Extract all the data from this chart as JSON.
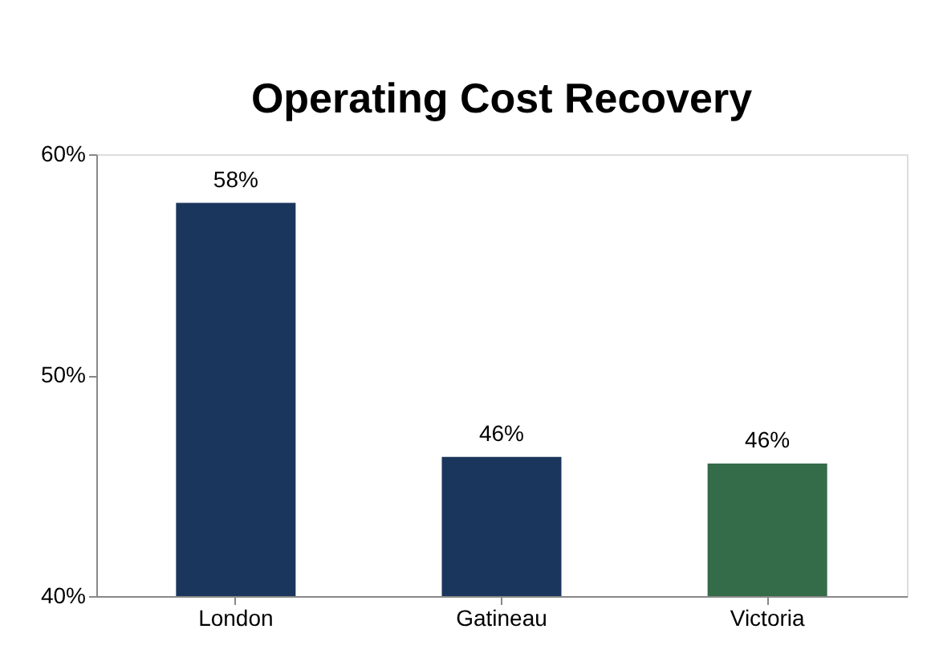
{
  "chart_data": {
    "type": "bar",
    "title": "Operating Cost Recovery",
    "categories": [
      "London",
      "Gatineau",
      "Victoria"
    ],
    "values": [
      57.8,
      46.3,
      46.0
    ],
    "colors": [
      "#1b365d",
      "#1b365d",
      "#346b49"
    ],
    "value_labels": [
      "58%",
      "46%",
      "46%"
    ],
    "ylim": [
      40,
      60
    ],
    "yticks": [
      {
        "value": 40,
        "label": "40%"
      },
      {
        "value": 50,
        "label": "50%"
      },
      {
        "value": 60,
        "label": "60%"
      }
    ],
    "grid": false
  }
}
